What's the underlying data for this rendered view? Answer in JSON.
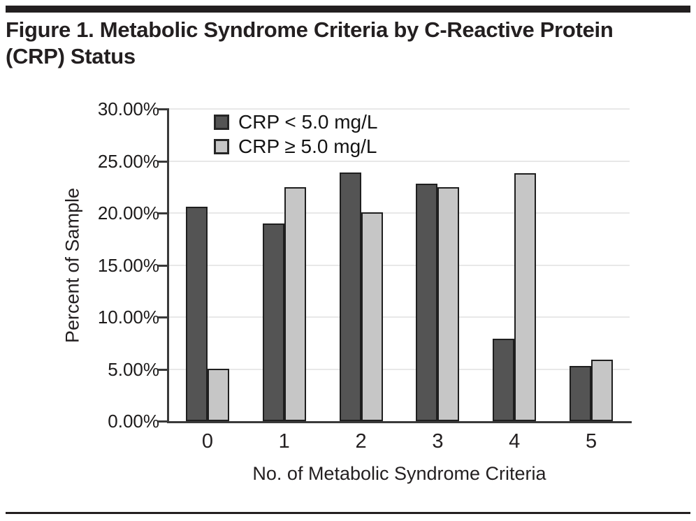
{
  "figure": {
    "title_line1": "Figure 1. Metabolic Syndrome Criteria by C-Reactive Protein",
    "title_line2": "(CRP) Status"
  },
  "chart_data": {
    "type": "bar",
    "title": "Figure 1. Metabolic Syndrome Criteria by C-Reactive Protein (CRP) Status",
    "xlabel": "No. of Metabolic Syndrome Criteria",
    "ylabel": "Percent of Sample",
    "categories": [
      "0",
      "1",
      "2",
      "3",
      "4",
      "5"
    ],
    "series": [
      {
        "name": "CRP < 5.0 mg/L",
        "color": "#545454",
        "values": [
          20.6,
          19.0,
          23.9,
          22.8,
          7.9,
          5.3
        ]
      },
      {
        "name": "CRP ≥ 5.0 mg/L",
        "color": "#c6c6c6",
        "values": [
          5.0,
          22.5,
          20.1,
          22.5,
          23.8,
          5.9
        ]
      }
    ],
    "ylim": [
      0,
      30
    ],
    "yticks": [
      {
        "value": 0,
        "label": "0.00%"
      },
      {
        "value": 5,
        "label": "5.00%"
      },
      {
        "value": 10,
        "label": "10.00%"
      },
      {
        "value": 15,
        "label": "15.00%"
      },
      {
        "value": 20,
        "label": "20.00%"
      },
      {
        "value": 25,
        "label": "25.00%"
      },
      {
        "value": 30,
        "label": "30.00%"
      }
    ],
    "grid": "horizontal",
    "legend_position": "top-left-inside",
    "bar_border_color": "#1f1f1f",
    "gridline_color": "#e8e8e8",
    "axis_color": "#3a3a3a",
    "text_color": "#231f20"
  }
}
